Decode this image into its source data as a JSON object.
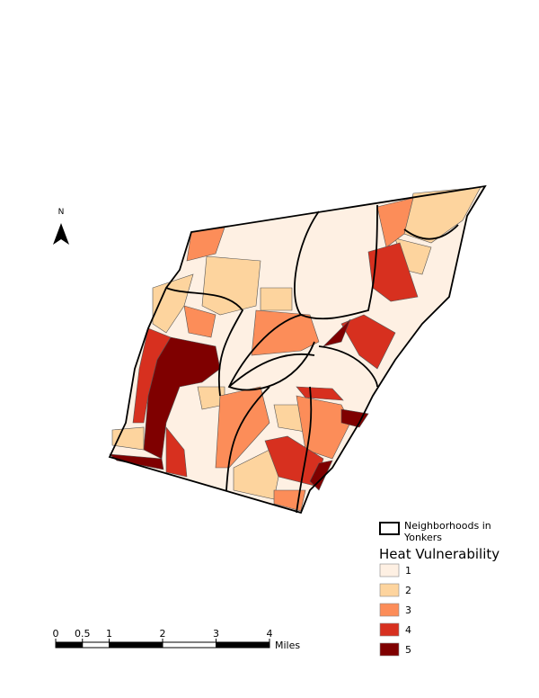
{
  "north_label": "N",
  "legend": {
    "outline_label": "Neighborhoods in Yonkers",
    "title": "Heat Vulnerability",
    "classes": [
      {
        "label": "1",
        "color": "#fef0e3"
      },
      {
        "label": "2",
        "color": "#fdd49e"
      },
      {
        "label": "3",
        "color": "#fc8d59"
      },
      {
        "label": "4",
        "color": "#d7301f"
      },
      {
        "label": "5",
        "color": "#7f0000"
      }
    ]
  },
  "scale_bar": {
    "ticks": [
      0,
      0.5,
      1,
      2,
      3,
      4
    ],
    "unit": "Miles"
  }
}
